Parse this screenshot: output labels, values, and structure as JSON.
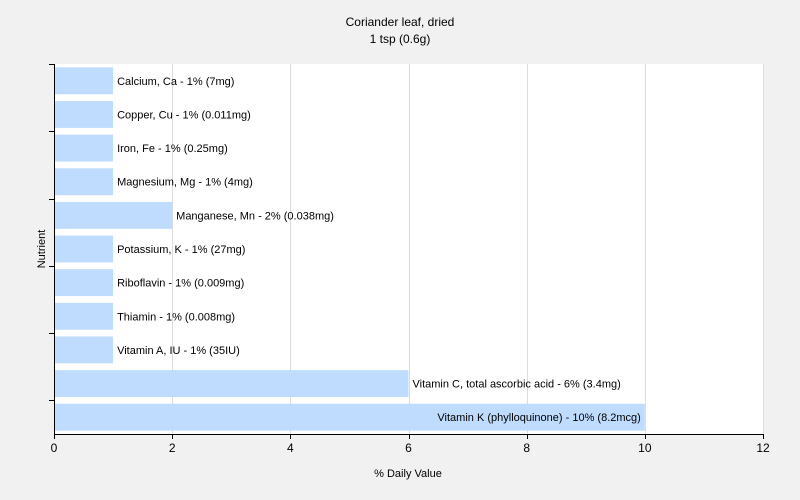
{
  "chart_data": {
    "type": "bar",
    "orientation": "horizontal",
    "title": "Coriander leaf, dried",
    "subtitle": "1 tsp (0.6g)",
    "xlabel": "% Daily Value",
    "ylabel": "Nutrient",
    "xlim": [
      0,
      12
    ],
    "xticks": [
      0,
      2,
      4,
      6,
      8,
      10,
      12
    ],
    "grid": "vertical",
    "colors": {
      "bar": "#bfdcff",
      "grid": "#dcdcdc",
      "axis": "#000000",
      "background": "#f1f1f1",
      "plot_background": "#ffffff"
    },
    "categories": [
      "Calcium, Ca",
      "Copper, Cu",
      "Iron, Fe",
      "Magnesium, Mg",
      "Manganese, Mn",
      "Potassium, K",
      "Riboflavin",
      "Thiamin",
      "Vitamin A, IU",
      "Vitamin C, total ascorbic acid",
      "Vitamin K (phylloquinone)"
    ],
    "values": [
      1,
      1,
      1,
      1,
      2,
      1,
      1,
      1,
      1,
      6,
      10
    ],
    "data_labels": [
      "Calcium, Ca - 1% (7mg)",
      "Copper, Cu - 1% (0.011mg)",
      "Iron, Fe - 1% (0.25mg)",
      "Magnesium, Mg - 1% (4mg)",
      "Manganese, Mn - 2% (0.038mg)",
      "Potassium, K - 1% (27mg)",
      "Riboflavin - 1% (0.009mg)",
      "Thiamin - 1% (0.008mg)",
      "Vitamin A, IU - 1% (35IU)",
      "Vitamin C, total ascorbic acid - 6% (3.4mg)",
      "Vitamin K (phylloquinone) - 10% (8.2mcg)"
    ]
  }
}
